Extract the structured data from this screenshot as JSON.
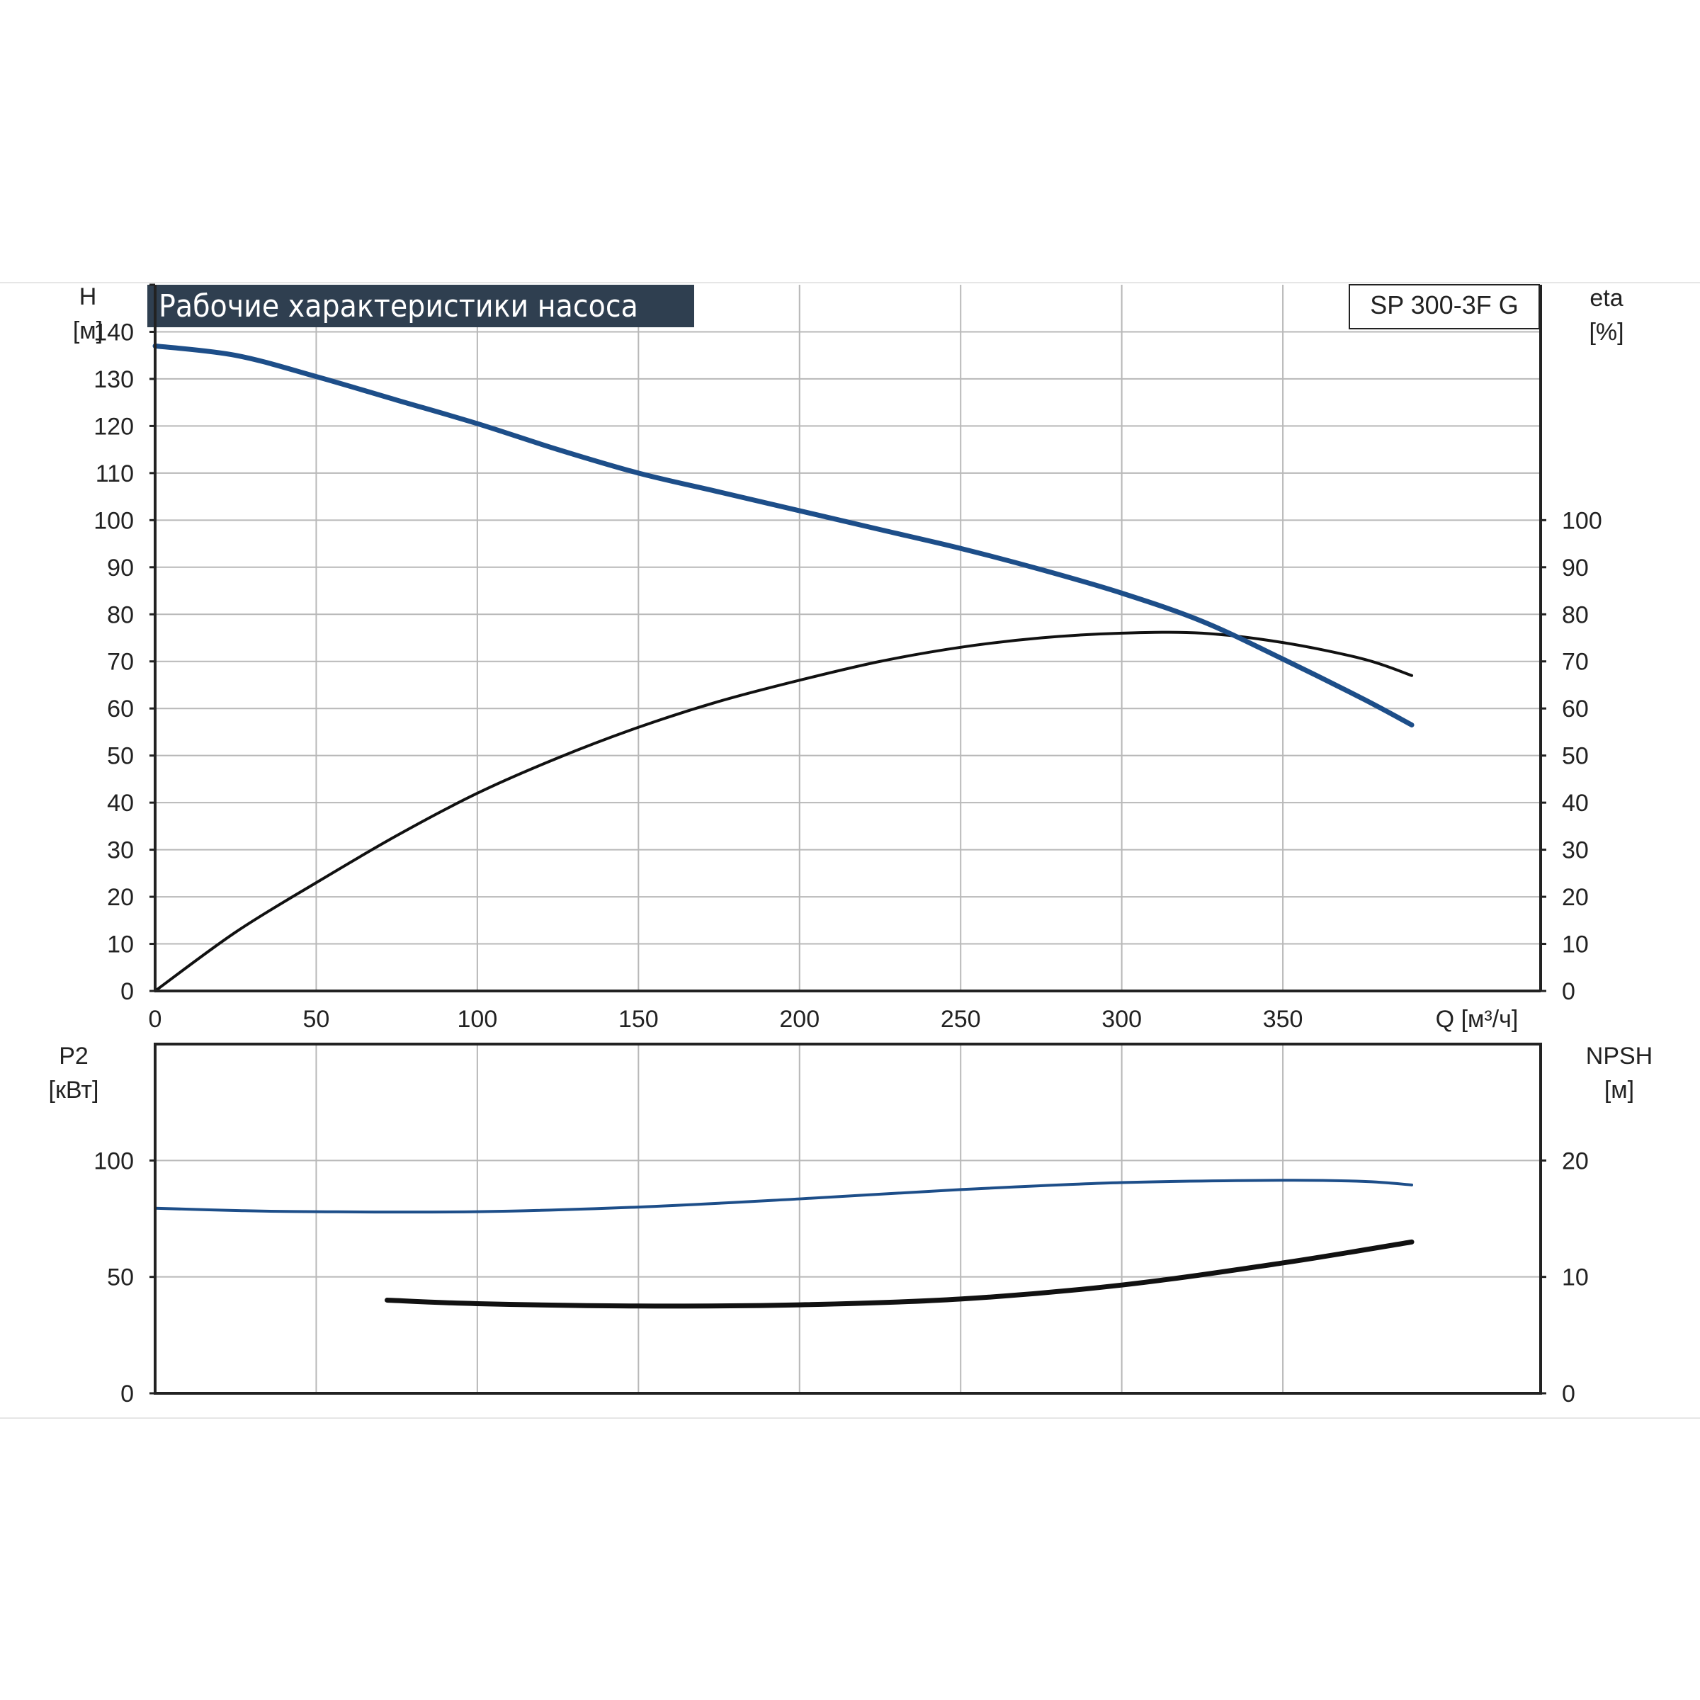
{
  "colors": {
    "head_curve": "#1d4e89",
    "power_curve": "#1d4e89",
    "eta_curve": "#111111",
    "npsh_curve": "#111111",
    "grid": "#b8b8b8",
    "axis": "#222222",
    "title_bg": "#2f3f50",
    "title_text": "#ffffff"
  },
  "chart_data": [
    {
      "type": "line",
      "title": "Рабочие характеристики насоса",
      "model": "SP 300-3F G",
      "xlabel": "Q [м³/ч]",
      "xlim": [
        0,
        430
      ],
      "xticks": [
        0,
        50,
        100,
        150,
        200,
        250,
        300,
        350
      ],
      "grid": true,
      "y_left": {
        "label": "H",
        "unit": "[м]",
        "lim": [
          0,
          150
        ],
        "ticks": [
          0,
          10,
          20,
          30,
          40,
          50,
          60,
          70,
          80,
          90,
          100,
          110,
          120,
          130,
          140
        ]
      },
      "y_right": {
        "label": "eta",
        "unit": "[%]",
        "lim": [
          0,
          150
        ],
        "ticks": [
          0,
          10,
          20,
          30,
          40,
          50,
          60,
          70,
          80,
          90,
          100
        ]
      },
      "series": [
        {
          "axis": "left",
          "x": [
            0,
            25,
            50,
            75,
            100,
            125,
            150,
            175,
            200,
            225,
            250,
            275,
            300,
            325,
            350,
            375,
            390
          ],
          "values": [
            137,
            135,
            130.5,
            125.5,
            120.5,
            115,
            110,
            106,
            102,
            98,
            94,
            89.5,
            84.5,
            78.5,
            70.5,
            62,
            56.5
          ]
        },
        {
          "axis": "right",
          "x": [
            0,
            25,
            50,
            75,
            100,
            125,
            150,
            175,
            200,
            225,
            250,
            275,
            300,
            325,
            350,
            375,
            390
          ],
          "values": [
            0,
            12.5,
            23,
            33,
            42,
            49.5,
            56,
            61.5,
            66,
            70,
            73,
            75,
            76,
            76,
            74,
            70.5,
            67
          ]
        }
      ]
    },
    {
      "type": "line",
      "xlim": [
        0,
        430
      ],
      "grid": true,
      "y_left": {
        "label": "P2",
        "unit": "[кВт]",
        "lim": [
          0,
          150
        ],
        "ticks": [
          0,
          50,
          100
        ]
      },
      "y_right": {
        "label": "NPSH",
        "unit": "[м]",
        "lim": [
          0,
          30
        ],
        "ticks": [
          0,
          10,
          20
        ]
      },
      "series": [
        {
          "axis": "left",
          "x": [
            0,
            25,
            50,
            100,
            150,
            200,
            250,
            300,
            350,
            375,
            390
          ],
          "values": [
            79.5,
            78.5,
            78,
            78,
            80,
            83.5,
            87.5,
            90.5,
            91.5,
            91,
            89.5
          ]
        },
        {
          "axis": "right",
          "x": [
            72,
            100,
            150,
            200,
            250,
            300,
            350,
            390
          ],
          "values": [
            8,
            7.7,
            7.5,
            7.6,
            8.1,
            9.3,
            11.2,
            13
          ]
        }
      ]
    }
  ]
}
